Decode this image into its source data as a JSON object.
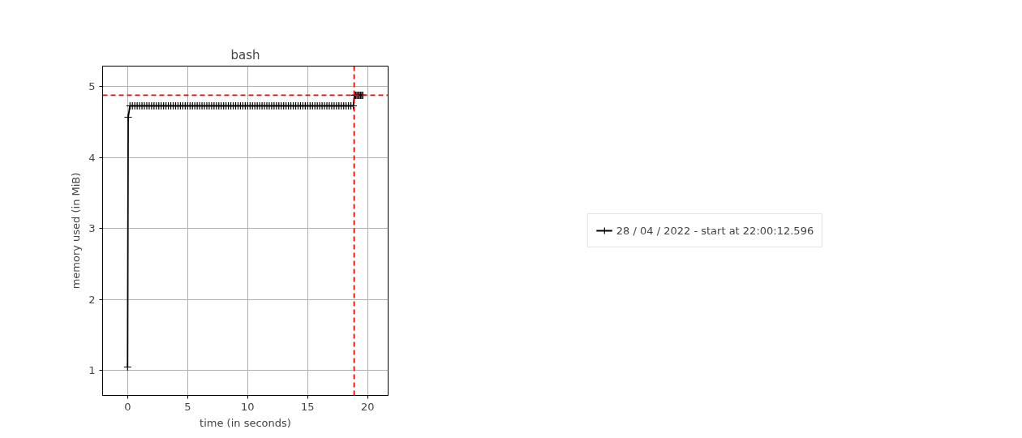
{
  "chart_data": {
    "type": "line",
    "title": "bash",
    "xlabel": "time (in seconds)",
    "ylabel": "memory used (in MiB)",
    "xlim": [
      -2.08,
      21.7
    ],
    "ylim": [
      0.65,
      5.29
    ],
    "xticks": [
      0,
      5,
      10,
      15,
      20
    ],
    "yticks": [
      1,
      2,
      3,
      4,
      5
    ],
    "grid": true,
    "legend": "right",
    "marker": "cross",
    "line_style": "solid",
    "ref_lines": [
      {
        "axis": "y",
        "value": 4.88,
        "color": "#ff0000",
        "line_style": "dashed"
      },
      {
        "axis": "x",
        "value": 18.87,
        "color": "#ff0000",
        "line_style": "dashed"
      }
    ],
    "series": [
      {
        "name": "28 / 04 / 2022 - start at 22:00:12.596",
        "color": "#000000",
        "x": [
          0,
          0.05,
          0.2,
          0.4,
          0.6,
          0.8,
          1.0,
          1.2,
          1.4,
          1.6,
          1.8,
          2.0,
          2.2,
          2.4,
          2.6,
          2.8,
          3.0,
          3.2,
          3.4,
          3.6,
          3.8,
          4.0,
          4.2,
          4.4,
          4.6,
          4.8,
          5.0,
          5.2,
          5.4,
          5.6,
          5.8,
          6.0,
          6.2,
          6.4,
          6.6,
          6.8,
          7.0,
          7.2,
          7.4,
          7.6,
          7.8,
          8.0,
          8.2,
          8.4,
          8.6,
          8.8,
          9.0,
          9.2,
          9.4,
          9.6,
          9.8,
          10.0,
          10.2,
          10.4,
          10.6,
          10.8,
          11.0,
          11.2,
          11.4,
          11.6,
          11.8,
          12.0,
          12.2,
          12.4,
          12.6,
          12.8,
          13.0,
          13.2,
          13.4,
          13.6,
          13.8,
          14.0,
          14.2,
          14.4,
          14.6,
          14.8,
          15.0,
          15.2,
          15.4,
          15.6,
          15.8,
          16.0,
          16.2,
          16.4,
          16.6,
          16.8,
          17.0,
          17.2,
          17.4,
          17.6,
          17.8,
          18.0,
          18.2,
          18.4,
          18.6,
          18.8,
          18.9,
          19.0,
          19.1,
          19.2,
          19.3,
          19.4,
          19.5,
          19.6
        ],
        "values": [
          1.05,
          4.57,
          4.73,
          4.73,
          4.73,
          4.73,
          4.73,
          4.73,
          4.73,
          4.73,
          4.73,
          4.73,
          4.73,
          4.73,
          4.73,
          4.73,
          4.73,
          4.73,
          4.73,
          4.73,
          4.73,
          4.73,
          4.73,
          4.73,
          4.73,
          4.73,
          4.73,
          4.73,
          4.73,
          4.73,
          4.73,
          4.73,
          4.73,
          4.73,
          4.73,
          4.73,
          4.73,
          4.73,
          4.73,
          4.73,
          4.73,
          4.73,
          4.73,
          4.73,
          4.73,
          4.73,
          4.73,
          4.73,
          4.73,
          4.73,
          4.73,
          4.73,
          4.73,
          4.73,
          4.73,
          4.73,
          4.73,
          4.73,
          4.73,
          4.73,
          4.73,
          4.73,
          4.73,
          4.73,
          4.73,
          4.73,
          4.73,
          4.73,
          4.73,
          4.73,
          4.73,
          4.73,
          4.73,
          4.73,
          4.73,
          4.73,
          4.73,
          4.73,
          4.73,
          4.73,
          4.73,
          4.73,
          4.73,
          4.73,
          4.73,
          4.73,
          4.73,
          4.73,
          4.73,
          4.73,
          4.73,
          4.73,
          4.73,
          4.73,
          4.73,
          4.73,
          4.88,
          4.88,
          4.88,
          4.88,
          4.88,
          4.88,
          4.88,
          4.88
        ]
      }
    ]
  }
}
